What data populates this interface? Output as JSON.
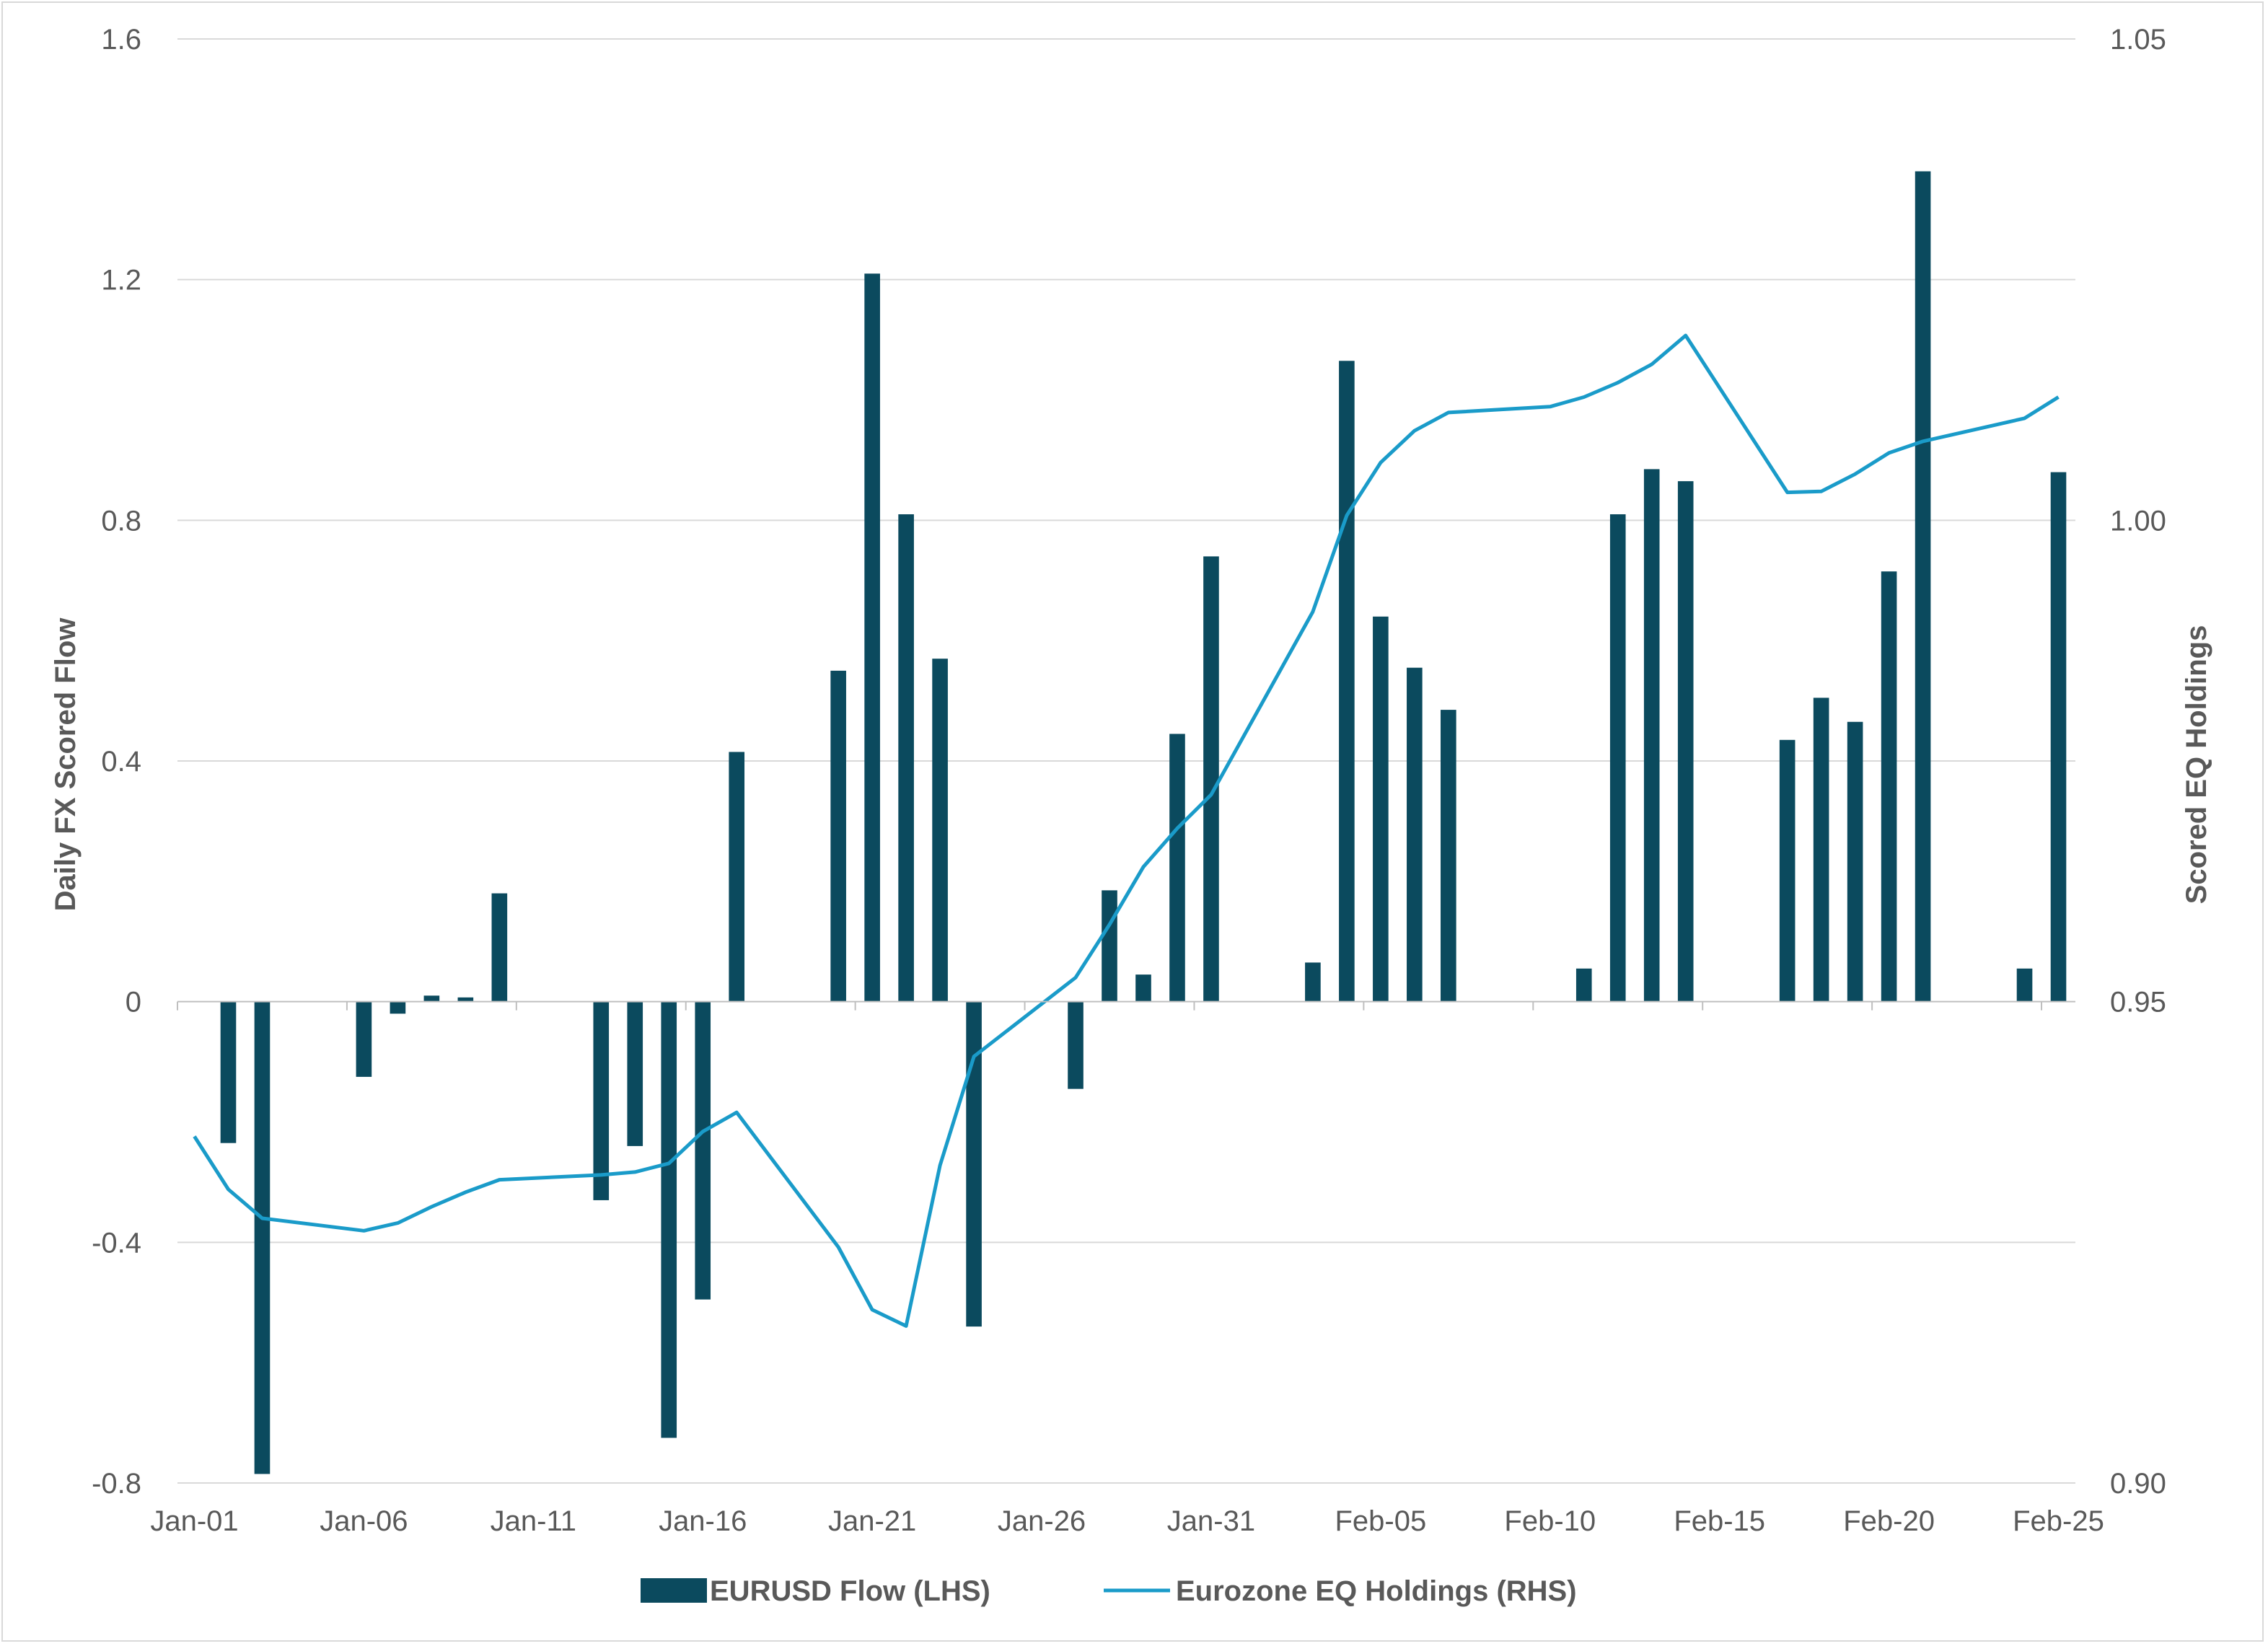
{
  "chart_data": {
    "type": "bar",
    "title": "",
    "xlabel": "",
    "ylabel": "Daily FX Scored Flow",
    "y2label": "Scored EQ Holdings",
    "ylim": [
      -0.8,
      1.6
    ],
    "y2lim": [
      0.9,
      1.05
    ],
    "yticks": [
      "1.6",
      "1.2",
      "0.8",
      "0.4",
      "0",
      "-0.4",
      "-0.8"
    ],
    "y2ticks": [
      "1.05",
      "1.00",
      "0.95",
      "0.90"
    ],
    "xtick_labels": [
      "Jan-01",
      "Jan-06",
      "Jan-11",
      "Jan-16",
      "Jan-21",
      "Jan-26",
      "Jan-31",
      "Feb-05",
      "Feb-10",
      "Feb-15",
      "Feb-20",
      "Feb-25"
    ],
    "x_start": "Jan-01",
    "x_end": "Feb-25",
    "grid": "horizontal",
    "legend_position": "bottom",
    "colors": {
      "bar": "#0b4a5e",
      "line": "#1a9bc9",
      "grid": "#d9d9d9",
      "axis": "#bfbfbf",
      "text": "#595959"
    },
    "series": [
      {
        "name": "EURUSD Flow (LHS)",
        "type": "bar",
        "axis": "left",
        "points": [
          {
            "x": "Jan-02",
            "y": -0.235
          },
          {
            "x": "Jan-03",
            "y": -0.785
          },
          {
            "x": "Jan-06",
            "y": -0.125
          },
          {
            "x": "Jan-07",
            "y": -0.02
          },
          {
            "x": "Jan-08",
            "y": 0.01
          },
          {
            "x": "Jan-09",
            "y": 0.007
          },
          {
            "x": "Jan-10",
            "y": 0.18
          },
          {
            "x": "Jan-13",
            "y": -0.33
          },
          {
            "x": "Jan-14",
            "y": -0.24
          },
          {
            "x": "Jan-15",
            "y": -0.725
          },
          {
            "x": "Jan-16",
            "y": -0.495
          },
          {
            "x": "Jan-17",
            "y": 0.415
          },
          {
            "x": "Jan-20",
            "y": 0.55
          },
          {
            "x": "Jan-21",
            "y": 1.21
          },
          {
            "x": "Jan-22",
            "y": 0.81
          },
          {
            "x": "Jan-23",
            "y": 0.57
          },
          {
            "x": "Jan-24",
            "y": -0.54
          },
          {
            "x": "Jan-27",
            "y": -0.145
          },
          {
            "x": "Jan-28",
            "y": 0.185
          },
          {
            "x": "Jan-29",
            "y": 0.045
          },
          {
            "x": "Jan-30",
            "y": 0.445
          },
          {
            "x": "Jan-31",
            "y": 0.74
          },
          {
            "x": "Feb-03",
            "y": 0.065
          },
          {
            "x": "Feb-04",
            "y": 1.065
          },
          {
            "x": "Feb-05",
            "y": 0.64
          },
          {
            "x": "Feb-06",
            "y": 0.555
          },
          {
            "x": "Feb-07",
            "y": 0.485
          },
          {
            "x": "Feb-11",
            "y": 0.055
          },
          {
            "x": "Feb-12",
            "y": 0.81
          },
          {
            "x": "Feb-13",
            "y": 0.885
          },
          {
            "x": "Feb-14",
            "y": 0.865
          },
          {
            "x": "Feb-17",
            "y": 0.435
          },
          {
            "x": "Feb-18",
            "y": 0.505
          },
          {
            "x": "Feb-19",
            "y": 0.465
          },
          {
            "x": "Feb-20",
            "y": 0.715
          },
          {
            "x": "Feb-21",
            "y": 1.38
          },
          {
            "x": "Feb-24",
            "y": 0.055
          },
          {
            "x": "Feb-25",
            "y": 0.88
          }
        ]
      },
      {
        "name": "Eurozone EQ Holdings (RHS)",
        "type": "line",
        "axis": "right",
        "points": [
          {
            "x": "Jan-01",
            "y": 0.936
          },
          {
            "x": "Jan-02",
            "y": 0.9305
          },
          {
            "x": "Jan-03",
            "y": 0.9275
          },
          {
            "x": "Jan-06",
            "y": 0.9262
          },
          {
            "x": "Jan-07",
            "y": 0.927
          },
          {
            "x": "Jan-08",
            "y": 0.9287
          },
          {
            "x": "Jan-09",
            "y": 0.9302
          },
          {
            "x": "Jan-10",
            "y": 0.9315
          },
          {
            "x": "Jan-13",
            "y": 0.932
          },
          {
            "x": "Jan-14",
            "y": 0.9323
          },
          {
            "x": "Jan-15",
            "y": 0.9332
          },
          {
            "x": "Jan-16",
            "y": 0.9365
          },
          {
            "x": "Jan-17",
            "y": 0.9385
          },
          {
            "x": "Jan-20",
            "y": 0.9245
          },
          {
            "x": "Jan-21",
            "y": 0.918
          },
          {
            "x": "Jan-22",
            "y": 0.9163
          },
          {
            "x": "Jan-23",
            "y": 0.933
          },
          {
            "x": "Jan-24",
            "y": 0.9443
          },
          {
            "x": "Jan-27",
            "y": 0.9525
          },
          {
            "x": "Jan-28",
            "y": 0.958
          },
          {
            "x": "Jan-29",
            "y": 0.964
          },
          {
            "x": "Jan-30",
            "y": 0.968
          },
          {
            "x": "Jan-31",
            "y": 0.9715
          },
          {
            "x": "Feb-03",
            "y": 0.9905
          },
          {
            "x": "Feb-04",
            "y": 1.0005
          },
          {
            "x": "Feb-05",
            "y": 1.006
          },
          {
            "x": "Feb-06",
            "y": 1.0093
          },
          {
            "x": "Feb-07",
            "y": 1.0112
          },
          {
            "x": "Feb-10",
            "y": 1.0118
          },
          {
            "x": "Feb-11",
            "y": 1.0128
          },
          {
            "x": "Feb-12",
            "y": 1.0143
          },
          {
            "x": "Feb-13",
            "y": 1.0162
          },
          {
            "x": "Feb-14",
            "y": 1.0192
          },
          {
            "x": "Feb-17",
            "y": 1.0029
          },
          {
            "x": "Feb-18",
            "y": 1.003
          },
          {
            "x": "Feb-19",
            "y": 1.0048
          },
          {
            "x": "Feb-20",
            "y": 1.007
          },
          {
            "x": "Feb-21",
            "y": 1.0082
          },
          {
            "x": "Feb-24",
            "y": 1.0106
          },
          {
            "x": "Feb-25",
            "y": 1.0128
          }
        ]
      }
    ]
  }
}
